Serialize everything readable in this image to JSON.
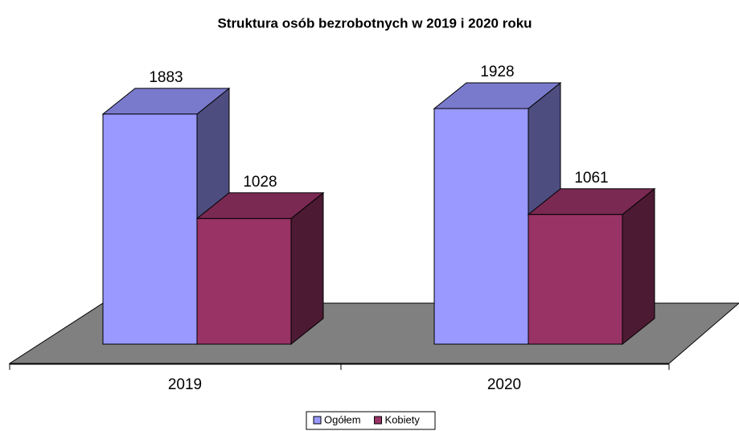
{
  "chart_data": {
    "type": "bar3d",
    "title": "Struktura osób bezrobotnych  w 2019 i 2020 roku",
    "categories": [
      "2019",
      "2020"
    ],
    "series": [
      {
        "name": "Ogółem",
        "color": "#9999ff",
        "values": [
          1883,
          1928
        ]
      },
      {
        "name": "Kobiety",
        "color": "#993366",
        "values": [
          1028,
          1061
        ]
      }
    ],
    "legend": "bottom"
  }
}
